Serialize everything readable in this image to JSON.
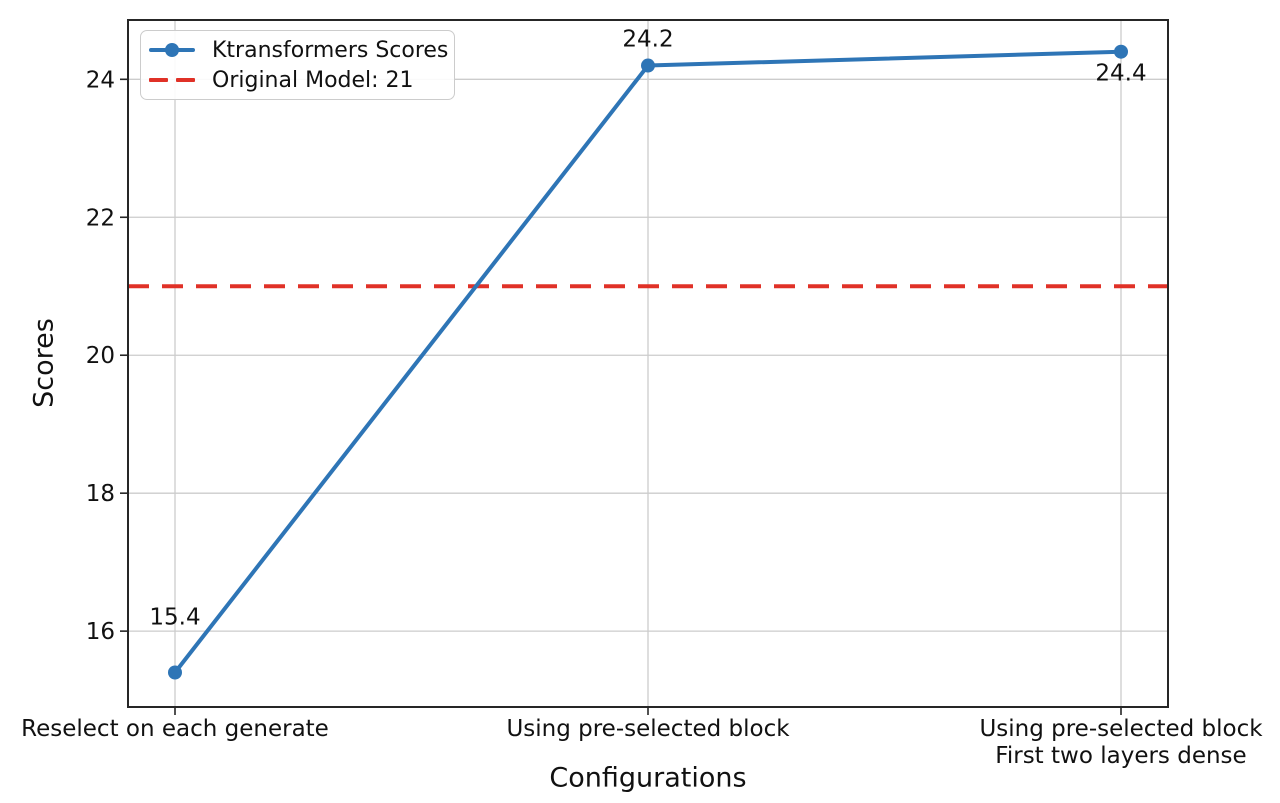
{
  "figure": {
    "background": "#ffffff",
    "text_color": "#111111",
    "grid_color": "#cccccc",
    "spine_color": "#262626"
  },
  "chart_data": {
    "type": "line",
    "title": "",
    "xlabel": "Configurations",
    "ylabel": "Scores",
    "categories": [
      "Reselect on each generate",
      "Using pre-selected block",
      "Using pre-selected block\nFirst two layers dense"
    ],
    "series": [
      {
        "name": "Ktransformers Scores",
        "values": [
          15.4,
          24.2,
          24.4
        ],
        "color": "#2e75b6",
        "marker": "circle",
        "line_style": "solid"
      }
    ],
    "reference_line": {
      "name": "Original Model: 21",
      "value": 21,
      "color": "#e03127",
      "line_style": "dashed"
    },
    "annotations": [
      {
        "text": "15.4",
        "point_index": 0
      },
      {
        "text": "24.2",
        "point_index": 1
      },
      {
        "text": "24.4",
        "point_index": 2
      }
    ],
    "yticks": [
      16,
      18,
      20,
      22,
      24
    ],
    "ylim": [
      14.9,
      24.86
    ],
    "grid": true,
    "legend_position": "upper-left",
    "legend_entries": [
      "Ktransformers Scores",
      "Original Model: 21"
    ]
  }
}
